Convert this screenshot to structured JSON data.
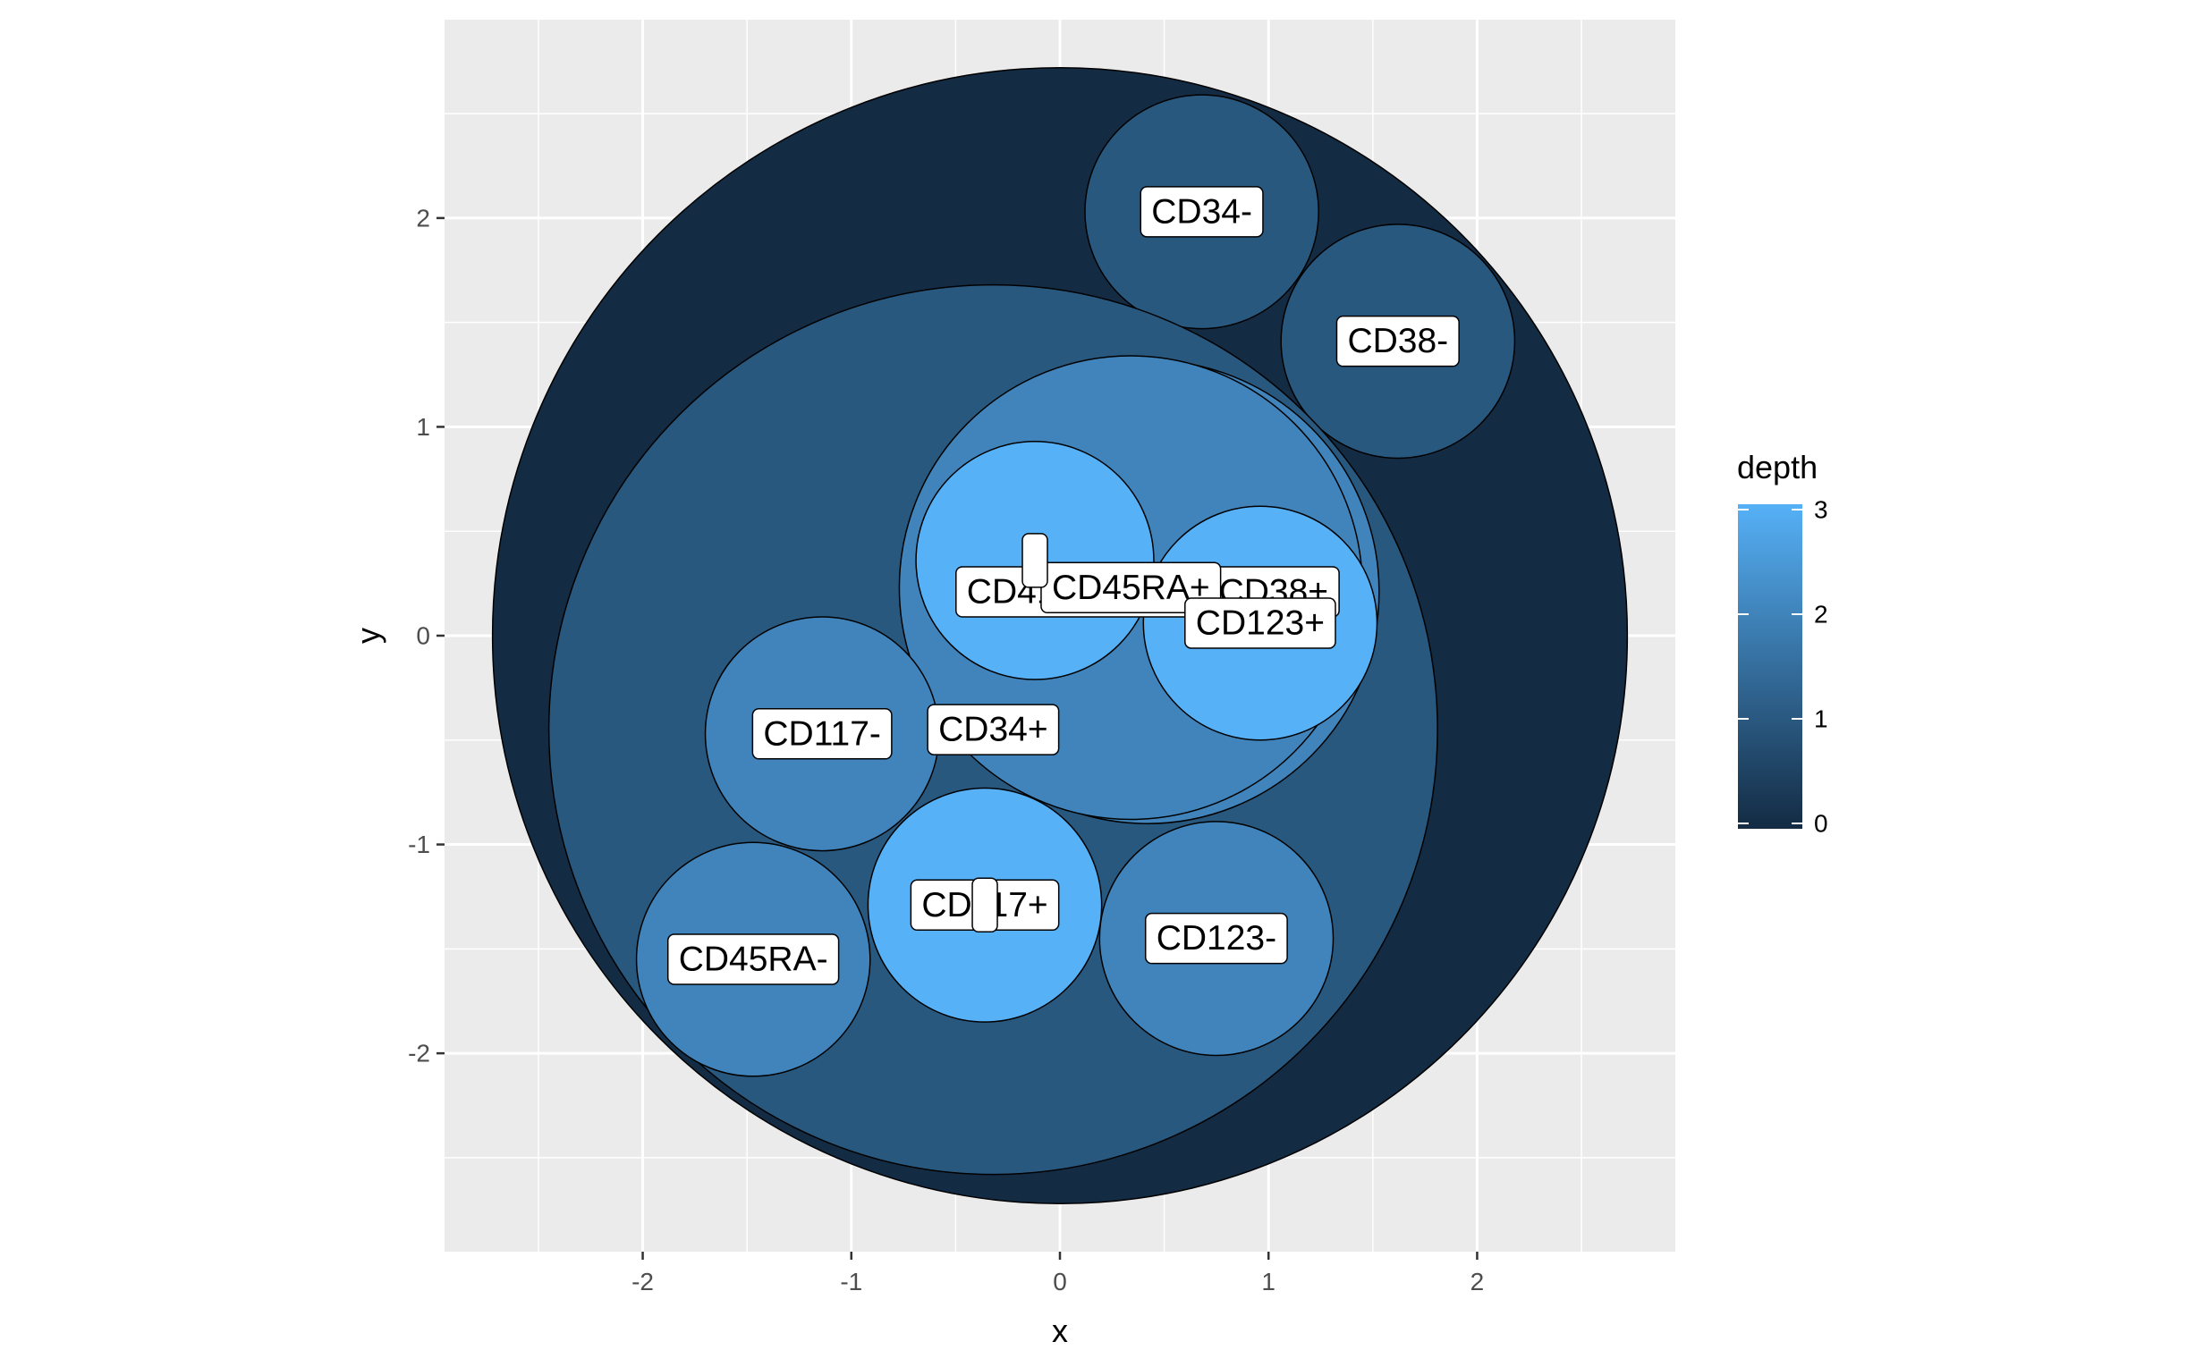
{
  "chart_data": {
    "type": "circle-packing",
    "xlabel": "x",
    "ylabel": "y",
    "xlim": [
      -2.95,
      2.95
    ],
    "ylim": [
      -2.95,
      2.95
    ],
    "x_ticks": [
      -2,
      -1,
      0,
      1,
      2
    ],
    "y_ticks": [
      -2,
      -1,
      0,
      1,
      2
    ],
    "grid": true,
    "legend": {
      "title": "depth",
      "placement": "right",
      "min": 0,
      "max": 3,
      "ticks": [
        0,
        1,
        2,
        3
      ],
      "low_color": "#132B43",
      "high_color": "#56B1F7"
    },
    "nodes": [
      {
        "label": "",
        "x": 0.0,
        "y": 0.0,
        "r": 2.72,
        "depth": 0
      },
      {
        "label": "CD34-",
        "x": 0.68,
        "y": 2.03,
        "r": 0.56,
        "depth": 1
      },
      {
        "label": "CD38-",
        "x": 1.62,
        "y": 1.41,
        "r": 0.56,
        "depth": 1
      },
      {
        "label": "CD34+",
        "x": -0.32,
        "y": -0.45,
        "r": 2.13,
        "depth": 1
      },
      {
        "label": "CD41hi CD61hi CD38+",
        "x": 0.42,
        "y": 0.21,
        "r": 1.11,
        "depth": 2
      },
      {
        "label": "CD45RA+",
        "x": 0.34,
        "y": 0.23,
        "r": 1.11,
        "depth": 2
      },
      {
        "label": "",
        "x": -0.12,
        "y": 0.36,
        "r": 0.57,
        "depth": 3
      },
      {
        "label": "CD123+",
        "x": 0.96,
        "y": 0.06,
        "r": 0.56,
        "depth": 3
      },
      {
        "label": "CD117-",
        "x": -1.14,
        "y": -0.47,
        "r": 0.56,
        "depth": 2
      },
      {
        "label": "CD45RA-",
        "x": -1.47,
        "y": -1.55,
        "r": 0.56,
        "depth": 2
      },
      {
        "label": "CD117+",
        "x": -0.36,
        "y": -1.29,
        "r": 0.56,
        "depth": 3
      },
      {
        "label": "",
        "x": -0.36,
        "y": -1.29,
        "r": 0.0,
        "depth": 3
      },
      {
        "label": "CD123-",
        "x": 0.75,
        "y": -1.45,
        "r": 0.56,
        "depth": 2
      }
    ]
  }
}
